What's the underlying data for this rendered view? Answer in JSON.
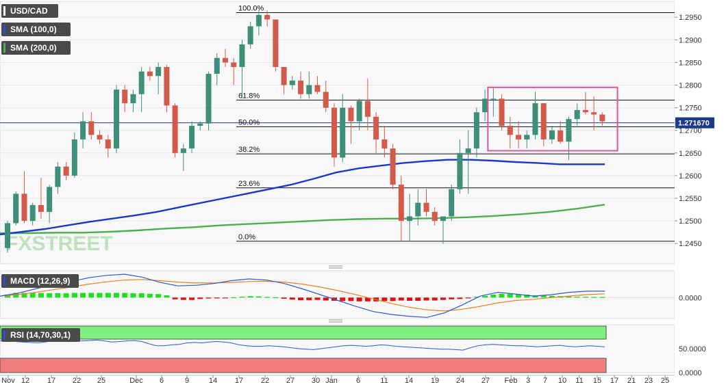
{
  "header": {
    "symbol": "USD/CAD",
    "sma100_label": "SMA (100,0)",
    "sma200_label": "SMA (200,0)",
    "watermark": "FXSTREET"
  },
  "colors": {
    "up": "#3d8f7a",
    "down": "#d35a4a",
    "sma100": "#1a38c8",
    "sma200": "#4caf50",
    "macd": "#2a5ad8",
    "signal": "#f08020",
    "hist_pos": "#1fe01f",
    "hist_neg": "#e01010",
    "rsi_upper": "#7ff07f",
    "rsi_lower": "#f07d7d",
    "rsi_line": "#2a5ad8",
    "box": "#e0559a",
    "price_tag": "#1b3a8c"
  },
  "chart_data": [
    {
      "type": "candlestick",
      "title": "USD/CAD",
      "x_tick_labels": [
        "Nov",
        "12",
        "17",
        "22",
        "25",
        "Dec",
        "6",
        "9",
        "14",
        "17",
        "22",
        "27",
        "30",
        "Jan",
        "6",
        "11",
        "14",
        "19",
        "24",
        "27",
        "Feb",
        "3",
        "7",
        "10",
        "11",
        "15",
        "17",
        "21",
        "23",
        "25"
      ],
      "y_tick_labels": [
        "1.2950",
        "1.2900",
        "1.2850",
        "1.2800",
        "1.2750",
        "1.2700",
        "1.2650",
        "1.2600",
        "1.2550",
        "1.2500",
        "1.2450"
      ],
      "ylim": [
        1.2405,
        1.2985
      ],
      "last_price": "1.271670",
      "candles": [
        [
          1.244,
          1.25,
          1.243,
          1.2495
        ],
        [
          1.2495,
          1.2565,
          1.249,
          1.256
        ],
        [
          1.256,
          1.261,
          1.2495,
          1.25
        ],
        [
          1.25,
          1.254,
          1.249,
          1.2535
        ],
        [
          1.2535,
          1.2595,
          1.2505,
          1.252
        ],
        [
          1.252,
          1.258,
          1.2495,
          1.2575
        ],
        [
          1.2575,
          1.263,
          1.256,
          1.262
        ],
        [
          1.262,
          1.263,
          1.259,
          1.26
        ],
        [
          1.26,
          1.2695,
          1.2595,
          1.268
        ],
        [
          1.268,
          1.274,
          1.266,
          1.272
        ],
        [
          1.272,
          1.274,
          1.268,
          1.269
        ],
        [
          1.269,
          1.27,
          1.267,
          1.268
        ],
        [
          1.268,
          1.269,
          1.264,
          1.266
        ],
        [
          1.266,
          1.28,
          1.265,
          1.279
        ],
        [
          1.279,
          1.28,
          1.274,
          1.276
        ],
        [
          1.276,
          1.279,
          1.274,
          1.278
        ],
        [
          1.278,
          1.284,
          1.274,
          1.283
        ],
        [
          1.283,
          1.284,
          1.281,
          1.282
        ],
        [
          1.282,
          1.285,
          1.278,
          1.284
        ],
        [
          1.284,
          1.2845,
          1.274,
          1.2755
        ],
        [
          1.2755,
          1.276,
          1.264,
          1.265
        ],
        [
          1.265,
          1.267,
          1.261,
          1.266
        ],
        [
          1.266,
          1.272,
          1.265,
          1.271
        ],
        [
          1.271,
          1.272,
          1.27,
          1.2715
        ],
        [
          1.2715,
          1.283,
          1.27,
          1.2825
        ],
        [
          1.2825,
          1.287,
          1.28,
          1.286
        ],
        [
          1.286,
          1.288,
          1.284,
          1.285
        ],
        [
          1.285,
          1.286,
          1.28,
          1.284
        ],
        [
          1.284,
          1.29,
          1.277,
          1.289
        ],
        [
          1.289,
          1.294,
          1.288,
          1.293
        ],
        [
          1.293,
          1.2965,
          1.291,
          1.2955
        ],
        [
          1.2955,
          1.2965,
          1.293,
          1.2945
        ],
        [
          1.2945,
          1.2945,
          1.283,
          1.284
        ],
        [
          1.284,
          1.284,
          1.278,
          1.28
        ],
        [
          1.28,
          1.282,
          1.279,
          1.281
        ],
        [
          1.281,
          1.283,
          1.277,
          1.278
        ],
        [
          1.278,
          1.283,
          1.277,
          1.28
        ],
        [
          1.28,
          1.282,
          1.278,
          1.2785
        ],
        [
          1.2785,
          1.281,
          1.274,
          1.275
        ],
        [
          1.275,
          1.276,
          1.262,
          1.264
        ],
        [
          1.264,
          1.278,
          1.263,
          1.275
        ],
        [
          1.275,
          1.2755,
          1.267,
          1.272
        ],
        [
          1.272,
          1.277,
          1.27,
          1.2765
        ],
        [
          1.2765,
          1.2815,
          1.27,
          1.273
        ],
        [
          1.273,
          1.274,
          1.265,
          1.268
        ],
        [
          1.268,
          1.271,
          1.264,
          1.266
        ],
        [
          1.266,
          1.267,
          1.257,
          1.258
        ],
        [
          1.258,
          1.26,
          1.2455,
          1.25
        ],
        [
          1.25,
          1.256,
          1.2455,
          1.251
        ],
        [
          1.251,
          1.257,
          1.249,
          1.254
        ],
        [
          1.254,
          1.257,
          1.251,
          1.252
        ],
        [
          1.252,
          1.253,
          1.249,
          1.25
        ],
        [
          1.25,
          1.251,
          1.245,
          1.251
        ],
        [
          1.251,
          1.258,
          1.25,
          1.257
        ],
        [
          1.257,
          1.268,
          1.256,
          1.265
        ],
        [
          1.265,
          1.27,
          1.256,
          1.266
        ],
        [
          1.266,
          1.275,
          1.264,
          1.274
        ],
        [
          1.274,
          1.279,
          1.272,
          1.277
        ],
        [
          1.277,
          1.2795,
          1.273,
          1.277
        ],
        [
          1.277,
          1.278,
          1.27,
          1.271
        ],
        [
          1.271,
          1.273,
          1.266,
          1.269
        ],
        [
          1.269,
          1.272,
          1.266,
          1.268
        ],
        [
          1.268,
          1.27,
          1.266,
          1.269
        ],
        [
          1.269,
          1.2785,
          1.268,
          1.276
        ],
        [
          1.276,
          1.276,
          1.2665,
          1.268
        ],
        [
          1.268,
          1.271,
          1.267,
          1.27
        ],
        [
          1.27,
          1.272,
          1.267,
          1.2675
        ],
        [
          1.2675,
          1.273,
          1.2635,
          1.2725
        ],
        [
          1.2725,
          1.276,
          1.271,
          1.2745
        ],
        [
          1.2745,
          1.2785,
          1.2735,
          1.274
        ],
        [
          1.274,
          1.2775,
          1.27,
          1.2735
        ],
        [
          1.2735,
          1.274,
          1.271,
          1.272
        ]
      ],
      "sma100": [
        1.247,
        1.2476,
        1.2482,
        1.249,
        1.2498,
        1.2505,
        1.2512,
        1.252,
        1.253,
        1.254,
        1.255,
        1.256,
        1.257,
        1.258,
        1.2593,
        1.2607,
        1.2616,
        1.2622,
        1.2628,
        1.2632,
        1.2635,
        1.2635,
        1.2633,
        1.263,
        1.2628,
        1.2625,
        1.2625,
        1.2625
      ],
      "sma200": [
        1.2473,
        1.2473,
        1.2474,
        1.2474,
        1.2476,
        1.2479,
        1.2483,
        1.2486,
        1.249,
        1.2493,
        1.2496,
        1.2499,
        1.2502,
        1.2504,
        1.2505,
        1.2505,
        1.2506,
        1.2508,
        1.2511,
        1.2515,
        1.252,
        1.2527,
        1.2536
      ],
      "fibonacci": [
        {
          "label": "100.0%",
          "value": 1.296
        },
        {
          "label": "61.8%",
          "value": 1.2767
        },
        {
          "label": "50.0%",
          "value": 1.2708
        },
        {
          "label": "38.2%",
          "value": 1.2648
        },
        {
          "label": "23.6%",
          "value": 1.2573
        },
        {
          "label": "0.0%",
          "value": 1.2455
        }
      ],
      "range_box": {
        "start_index": 58,
        "end_index": 72,
        "top": 1.2795,
        "bottom": 1.2655
      }
    },
    {
      "type": "macd",
      "title": "MACD (12,26,9)",
      "y_tick_labels": [
        "0.0000"
      ],
      "ylim": [
        -0.0072,
        0.0092
      ],
      "macd": [
        0.0005,
        0.0015,
        0.003,
        0.0045,
        0.0055,
        0.0068,
        0.0076,
        0.008,
        0.007,
        0.0052,
        0.004,
        0.0042,
        0.0048,
        0.0058,
        0.0064,
        0.006,
        0.0048,
        0.003,
        0.001,
        -0.001,
        -0.003,
        -0.0048,
        -0.0058,
        -0.0064,
        -0.0068,
        -0.0052,
        -0.0025,
        0.0005,
        0.0018,
        0.0012,
        0.0005,
        0.001,
        0.0018,
        0.0022,
        0.0022
      ],
      "signal": [
        0.0005,
        0.001,
        0.0018,
        0.0027,
        0.0036,
        0.0046,
        0.0054,
        0.006,
        0.0062,
        0.0058,
        0.0053,
        0.005,
        0.005,
        0.0052,
        0.0055,
        0.0056,
        0.0053,
        0.0046,
        0.0036,
        0.0024,
        0.001,
        -0.0005,
        -0.002,
        -0.0033,
        -0.0042,
        -0.0046,
        -0.004,
        -0.003,
        -0.0018,
        -0.001,
        -0.0006,
        0.0,
        0.0005,
        0.001,
        0.0013
      ],
      "histogram": [
        0.001,
        0.0016,
        0.0016,
        0.0016,
        0.0016,
        0.0015,
        0.0015,
        0.0015,
        0.0016,
        0.0016,
        0.0016,
        0.0016,
        0.0016,
        0.0016,
        0.0016,
        0.0015,
        0.0015,
        0.0013,
        0.0012,
        0.0008,
        -0.0006,
        -0.0008,
        -0.0008,
        -0.0005,
        -0.0003,
        -0.0002,
        -0.0001,
        0.0001,
        0.0003,
        0.0005,
        0.0004,
        0.0002,
        0.0001,
        -0.0004,
        -0.0007,
        -0.0009,
        -0.0009,
        -0.0008,
        -0.001,
        -0.0011,
        -0.0012,
        -0.0012,
        -0.0013,
        -0.0013,
        -0.0013,
        -0.0012,
        -0.0012,
        -0.001,
        -0.0011,
        -0.0011,
        -0.001,
        -0.001,
        -0.0008,
        -0.0006,
        -0.0005,
        -0.0001,
        0.0003,
        0.0006,
        0.001,
        0.0013,
        0.0013,
        0.0012,
        0.001,
        0.0008,
        0.0007,
        0.0006,
        0.0005,
        0.0004,
        0.0003,
        0.0003,
        0.0002,
        0.0002
      ]
    },
    {
      "type": "rsi",
      "title": "RSI (14,70,30,1)",
      "y_tick_labels": [
        "50.0000",
        "0.0000"
      ],
      "ylim": [
        0,
        100
      ],
      "upper_band": 70,
      "lower_band": 30,
      "values": [
        66,
        68,
        65,
        64,
        63,
        62,
        64,
        66,
        67,
        68,
        67,
        66,
        67,
        68,
        66,
        64,
        65,
        66,
        67,
        65,
        60,
        56,
        56,
        58,
        59,
        62,
        63,
        62,
        64,
        65,
        64,
        62,
        58,
        56,
        55,
        55,
        56,
        55,
        54,
        52,
        50,
        49,
        48,
        50,
        52,
        54,
        56,
        57,
        56,
        55,
        56,
        58,
        57,
        55,
        54,
        53,
        52,
        51,
        50,
        49,
        49,
        48,
        47,
        52,
        56,
        58,
        59,
        58,
        57,
        56,
        56,
        55,
        54,
        55,
        56,
        57,
        55,
        54,
        55,
        56,
        55,
        54
      ]
    }
  ],
  "x_axis": {
    "date_labels": [
      "Nov",
      "12",
      "17",
      "22",
      "25",
      "Dec",
      "6",
      "9",
      "14",
      "17",
      "22",
      "27",
      "30",
      "Jan",
      "6",
      "11",
      "14",
      "19",
      "24",
      "27",
      "Feb",
      "3",
      "7",
      "10",
      "11",
      "15",
      "17",
      "21",
      "23",
      "25"
    ]
  }
}
